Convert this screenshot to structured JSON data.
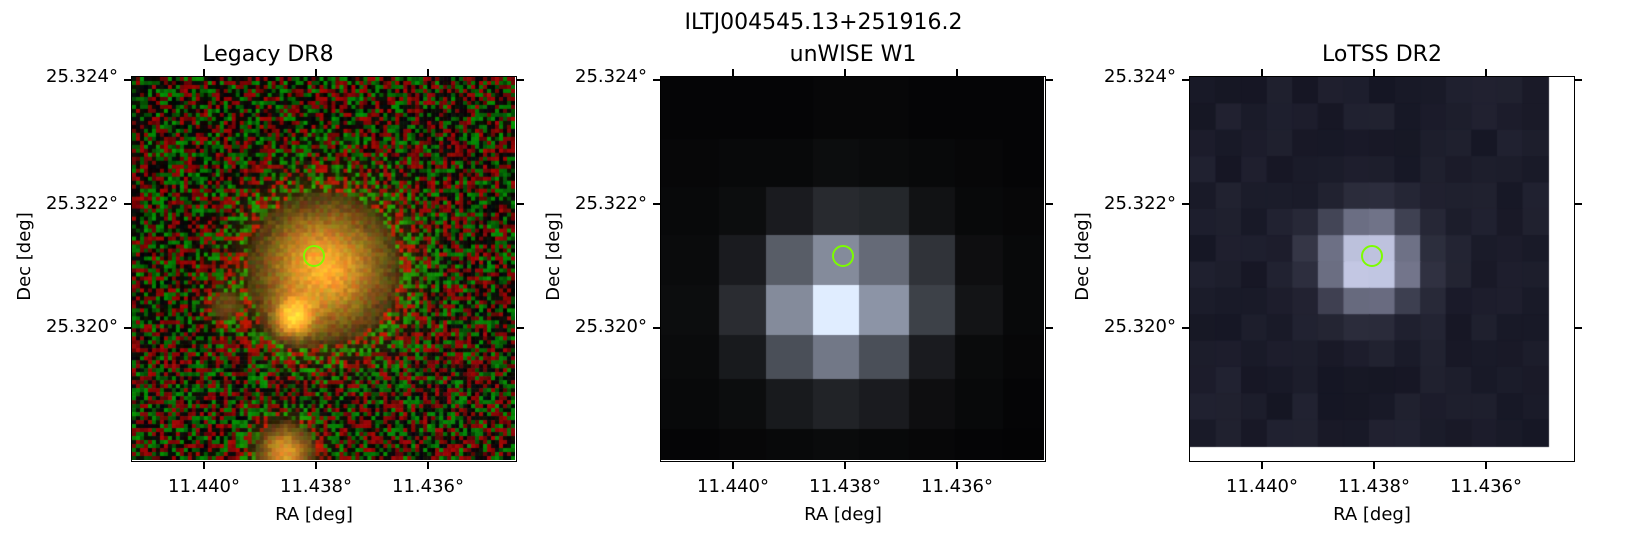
{
  "figure": {
    "title": "ILTJ004545.13+251916.2"
  },
  "panels": [
    {
      "title": "Legacy DR8",
      "image": "optical-color-cutout",
      "y_ticks": [
        "25.324°",
        "25.322°",
        "25.320°"
      ],
      "x_ticks": [
        "11.440°",
        "11.438°",
        "11.436°"
      ],
      "xlabel": "RA [deg]",
      "ylabel": "Dec [deg]"
    },
    {
      "title": "unWISE W1",
      "image": "infrared-grayscale-cutout",
      "y_ticks": [
        "25.324°",
        "25.322°",
        "25.320°"
      ],
      "x_ticks": [
        "11.440°",
        "11.438°",
        "11.436°"
      ],
      "xlabel": "RA [deg]",
      "ylabel": "Dec [deg]"
    },
    {
      "title": "LoTSS DR2",
      "image": "radio-grayscale-cutout",
      "y_ticks": [
        "25.324°",
        "25.322°",
        "25.320°"
      ],
      "x_ticks": [
        "11.440°",
        "11.438°",
        "11.436°"
      ],
      "xlabel": "RA [deg]",
      "ylabel": "Dec [deg]"
    }
  ],
  "marker": {
    "shape": "circle",
    "color": "#7cfc00"
  }
}
